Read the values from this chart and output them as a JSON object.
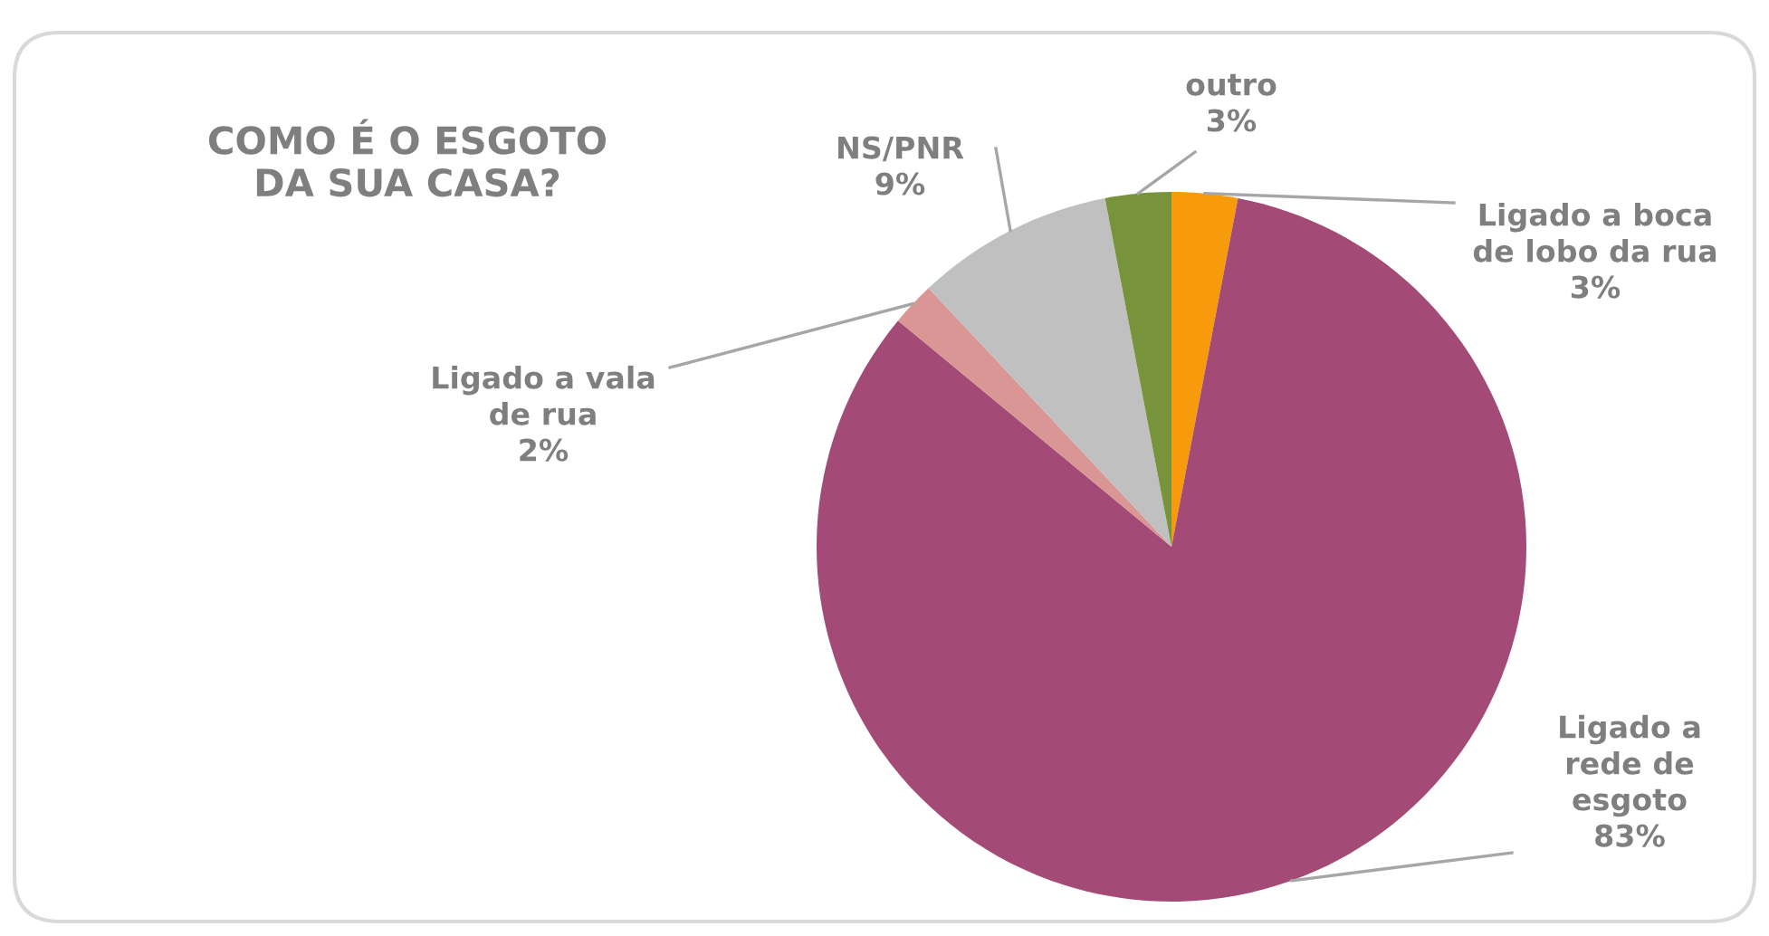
{
  "chart_data": {
    "type": "pie",
    "title": "COMO É O ESGOTO\nDA SUA CASA?",
    "categories": [
      "Ligado a boca\nde lobo da rua",
      "Ligado a\nrede de\nesgoto",
      "Ligado a vala\nde rua",
      "NS/PNR",
      "outro"
    ],
    "values": [
      3,
      83,
      2,
      9,
      3
    ],
    "colors": [
      "#f79a0c",
      "#a34a76",
      "#d99694",
      "#c0c0c0",
      "#77933c"
    ],
    "value_labels": [
      "3%",
      "83%",
      "2%",
      "9%",
      "3%"
    ]
  }
}
